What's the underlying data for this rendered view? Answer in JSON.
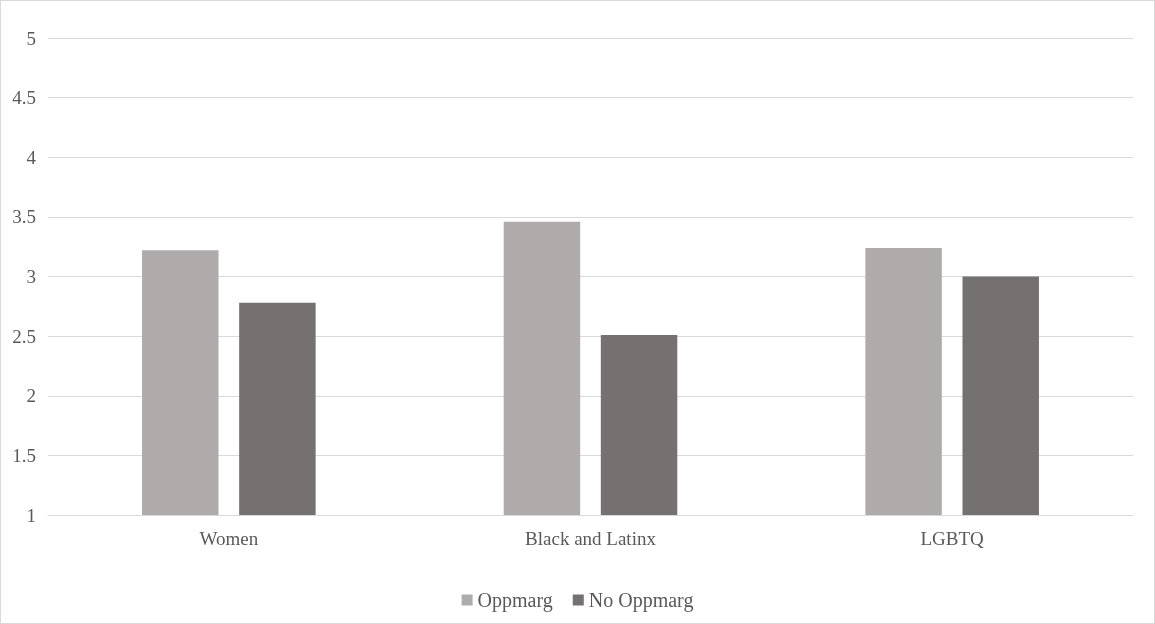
{
  "chart_data": {
    "type": "bar",
    "categories": [
      "Women",
      "Black and Latinx",
      "LGBTQ"
    ],
    "series": [
      {
        "name": "Oppmarg",
        "color": "#afabab",
        "values": [
          3.22,
          3.46,
          3.24
        ]
      },
      {
        "name": "No Oppmarg",
        "color": "#767171",
        "values": [
          2.78,
          2.51,
          3.0
        ]
      }
    ],
    "ylim": [
      1,
      5
    ],
    "yticks": [
      1,
      1.5,
      2,
      2.5,
      3,
      3.5,
      4,
      4.5,
      5
    ],
    "grid": "y",
    "legend": "bottom"
  }
}
